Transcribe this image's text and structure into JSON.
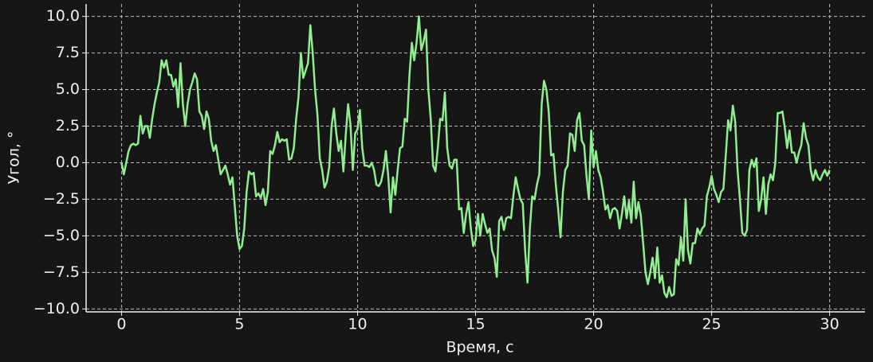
{
  "chart_data": {
    "type": "line",
    "xlabel": "Время, с",
    "ylabel": "Угол, °",
    "x": [
      0,
      0.1,
      0.2,
      0.3,
      0.4,
      0.5,
      0.6,
      0.7,
      0.8,
      0.9,
      1,
      1.1,
      1.2,
      1.3,
      1.4,
      1.5,
      1.6,
      1.7,
      1.8,
      1.9,
      2,
      2.1,
      2.2,
      2.3,
      2.4,
      2.5,
      2.6,
      2.7,
      2.8,
      2.9,
      3,
      3.1,
      3.2,
      3.3,
      3.4,
      3.5,
      3.6,
      3.7,
      3.8,
      3.9,
      4,
      4.1,
      4.2,
      4.3,
      4.4,
      4.5,
      4.6,
      4.7,
      4.8,
      4.9,
      5,
      5.1,
      5.2,
      5.3,
      5.4,
      5.5,
      5.6,
      5.7,
      5.8,
      5.9,
      6,
      6.1,
      6.2,
      6.3,
      6.4,
      6.5,
      6.6,
      6.7,
      6.8,
      6.9,
      7,
      7.1,
      7.2,
      7.3,
      7.4,
      7.5,
      7.6,
      7.7,
      7.8,
      7.9,
      8,
      8.1,
      8.2,
      8.3,
      8.4,
      8.5,
      8.6,
      8.7,
      8.8,
      8.9,
      9,
      9.1,
      9.2,
      9.3,
      9.4,
      9.5,
      9.6,
      9.7,
      9.8,
      9.9,
      10,
      10.1,
      10.2,
      10.3,
      10.4,
      10.5,
      10.6,
      10.7,
      10.8,
      10.9,
      11,
      11.1,
      11.2,
      11.3,
      11.4,
      11.5,
      11.6,
      11.7,
      11.8,
      11.9,
      12,
      12.1,
      12.2,
      12.3,
      12.4,
      12.5,
      12.6,
      12.7,
      12.8,
      12.9,
      13,
      13.1,
      13.2,
      13.3,
      13.4,
      13.5,
      13.6,
      13.7,
      13.8,
      13.9,
      14,
      14.1,
      14.2,
      14.3,
      14.4,
      14.5,
      14.6,
      14.7,
      14.8,
      14.9,
      15,
      15.1,
      15.2,
      15.3,
      15.4,
      15.5,
      15.6,
      15.7,
      15.8,
      15.9,
      16,
      16.1,
      16.2,
      16.3,
      16.4,
      16.5,
      16.6,
      16.7,
      16.8,
      16.9,
      17,
      17.1,
      17.2,
      17.3,
      17.4,
      17.5,
      17.6,
      17.7,
      17.8,
      17.9,
      18,
      18.1,
      18.2,
      18.3,
      18.4,
      18.5,
      18.6,
      18.7,
      18.8,
      18.9,
      19,
      19.1,
      19.2,
      19.3,
      19.4,
      19.5,
      19.6,
      19.7,
      19.8,
      19.9,
      20,
      20.1,
      20.2,
      20.3,
      20.4,
      20.5,
      20.6,
      20.7,
      20.8,
      20.9,
      21,
      21.1,
      21.2,
      21.3,
      21.4,
      21.5,
      21.6,
      21.7,
      21.8,
      21.9,
      22,
      22.1,
      22.2,
      22.3,
      22.4,
      22.5,
      22.6,
      22.7,
      22.8,
      22.9,
      23,
      23.1,
      23.2,
      23.3,
      23.4,
      23.5,
      23.6,
      23.7,
      23.8,
      23.9,
      24,
      24.1,
      24.2,
      24.3,
      24.4,
      24.5,
      24.6,
      24.7,
      24.8,
      24.9,
      25,
      25.1,
      25.2,
      25.3,
      25.4,
      25.5,
      25.6,
      25.7,
      25.8,
      25.9,
      26,
      26.1,
      26.2,
      26.3,
      26.4,
      26.5,
      26.6,
      26.7,
      26.8,
      26.9,
      27,
      27.1,
      27.2,
      27.3,
      27.4,
      27.5,
      27.6,
      27.7,
      27.8,
      27.9,
      28,
      28.1,
      28.2,
      28.3,
      28.4,
      28.5,
      28.6,
      28.7,
      28.8,
      28.9,
      29,
      29.1,
      29.2,
      29.3,
      29.4,
      29.5,
      29.6,
      29.7,
      29.8,
      29.9,
      30
    ],
    "series": [
      {
        "color": "#90ee90",
        "values": [
          0,
          -0.8,
          0,
          0.8,
          1.2,
          1.3,
          1.2,
          1.3,
          3.2,
          2,
          2.5,
          2.5,
          1.7,
          3,
          4,
          4.8,
          5.5,
          7,
          6.5,
          7,
          6,
          6,
          5.2,
          5.7,
          3.8,
          6.8,
          4,
          2.5,
          4,
          5,
          5.5,
          6.1,
          5.7,
          3.5,
          3.2,
          2.3,
          3.5,
          3,
          1.5,
          0.8,
          1.2,
          0.2,
          -0.8,
          -0.5,
          -0.2,
          -0.8,
          -1.5,
          -1,
          -3,
          -5,
          -5.9,
          -5.7,
          -4.5,
          -2,
          -0.6,
          -0.8,
          -0.7,
          -2.3,
          -2.1,
          -2.4,
          -1.8,
          -2.9,
          -2,
          0.8,
          0.6,
          1.2,
          2.1,
          1.4,
          1.6,
          1.5,
          1.6,
          0.2,
          0.3,
          1,
          3,
          4.5,
          7.5,
          5.8,
          6.3,
          6.8,
          9.4,
          7.5,
          5,
          3.3,
          0.3,
          -0.5,
          -1.7,
          -1.3,
          -0.3,
          2.5,
          3.7,
          2,
          0.8,
          1.5,
          -0.6,
          1.9,
          4,
          2.6,
          -0.5,
          2,
          2.3,
          3.6,
          1,
          -0.2,
          -0.2,
          -0.3,
          0,
          -0.5,
          -1.5,
          -1.6,
          -1.3,
          -0.5,
          0.8,
          -0.9,
          -3.4,
          -1,
          -2.2,
          -0.5,
          1,
          1.1,
          3,
          2.8,
          6,
          8.2,
          7,
          8.2,
          10,
          7.7,
          8.3,
          9.1,
          5,
          3,
          -0.2,
          -0.6,
          1,
          3,
          2.9,
          4.8,
          1,
          -0.2,
          -0.4,
          0.2,
          0.2,
          -3.2,
          -3.1,
          -4.8,
          -3.5,
          -2.7,
          -4.5,
          -5.7,
          -5.3,
          -3.5,
          -5,
          -3.5,
          -4.2,
          -4.8,
          -4.5,
          -6,
          -6.5,
          -7.8,
          -4,
          -3.7,
          -4.6,
          -3.8,
          -3.7,
          -3.8,
          -2.3,
          -1,
          -1.8,
          -2.5,
          -2.8,
          -6,
          -8.2,
          -4.5,
          -2.3,
          -2.5,
          -1.5,
          -0.8,
          4,
          5.6,
          5,
          3.5,
          0.5,
          0.6,
          -1.5,
          -3.2,
          -5.1,
          -2,
          -0.5,
          -0.2,
          2,
          1.9,
          0.8,
          2.9,
          3.4,
          1.5,
          1.2,
          -0.9,
          -2.5,
          2.2,
          -0.3,
          0.8,
          -0.5,
          -1,
          -2,
          -3.2,
          -2.9,
          -3.8,
          -3.2,
          -3.1,
          -3.3,
          -4.5,
          -3.5,
          -2.3,
          -3.8,
          -2.6,
          -4.1,
          -1.3,
          -3.8,
          -2.7,
          -3.6,
          -5.5,
          -7.5,
          -8.3,
          -7.5,
          -6.5,
          -7.9,
          -5.8,
          -8.2,
          -7.7,
          -8.9,
          -9.2,
          -8.5,
          -9.1,
          -9,
          -6.6,
          -7,
          -5.1,
          -6.7,
          -2.5,
          -6,
          -6.9,
          -5.5,
          -5.5,
          -4.5,
          -4.9,
          -4.5,
          -4.3,
          -2.3,
          -1.7,
          -0.9,
          -1.8,
          -2.2,
          -2.7,
          -2,
          -1.8,
          0.5,
          2.9,
          2.2,
          3.9,
          2.8,
          -0.5,
          -2.5,
          -4.8,
          -5,
          -4.6,
          -0.5,
          0.2,
          -0.3,
          0.3,
          -3.3,
          -2.5,
          -1,
          -3.5,
          -1.5,
          -0.8,
          -1.2,
          0,
          3.4,
          3.4,
          3.5,
          2.4,
          1,
          2.2,
          0.7,
          0.7,
          0,
          0.7,
          1.2,
          2.7,
          1.7,
          1.2,
          -0.5,
          -1.2,
          -0.5,
          -1,
          -1.2,
          -0.8,
          -0.5,
          -0.9,
          -0.5
        ]
      }
    ],
    "xlim": [
      -1.5,
      31.5
    ],
    "xticks": [
      0,
      5,
      10,
      15,
      20,
      25,
      30
    ],
    "ylim": [
      -10.2,
      10.85
    ],
    "yticks": [
      {
        "value": -10,
        "label": "−10.0"
      },
      {
        "value": -7.5,
        "label": "−7.5"
      },
      {
        "value": -5,
        "label": "−5.0"
      },
      {
        "value": -2.5,
        "label": "−2.5"
      },
      {
        "value": 0,
        "label": "0.0"
      },
      {
        "value": 2.5,
        "label": "2.5"
      },
      {
        "value": 5,
        "label": "5.0"
      },
      {
        "value": 7.5,
        "label": "7.5"
      },
      {
        "value": 10,
        "label": "10.0"
      }
    ],
    "grid": true
  }
}
